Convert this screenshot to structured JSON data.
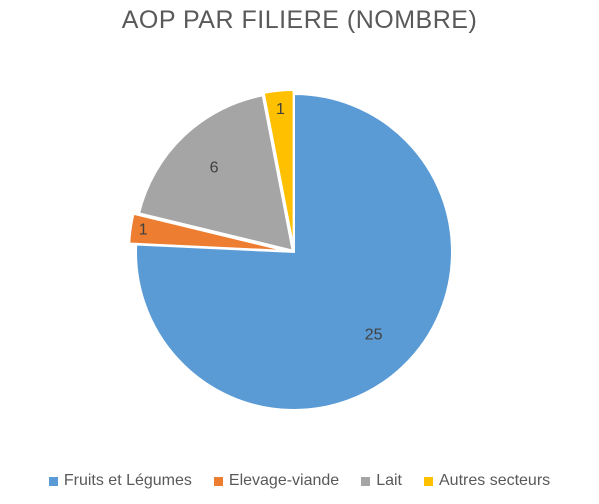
{
  "chart_data": {
    "type": "pie",
    "title": "AOP PAR FILIERE (NOMBRE)",
    "legend_position": "bottom",
    "start_angle_deg": 0,
    "direction": "clockwise",
    "slices": [
      {
        "name": "Fruits et Légumes",
        "value": 25,
        "color": "#5B9BD5"
      },
      {
        "name": "Elevage-viande",
        "value": 1,
        "color": "#ED7D31"
      },
      {
        "name": "Lait",
        "value": 6,
        "color": "#A5A5A5"
      },
      {
        "name": "Autres secteurs",
        "value": 1,
        "color": "#FFC000"
      }
    ]
  }
}
